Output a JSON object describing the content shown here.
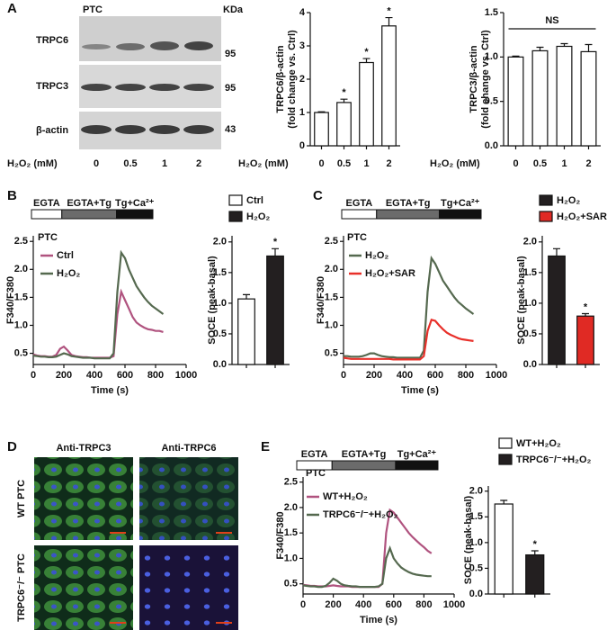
{
  "panel_letters": [
    "A",
    "B",
    "C",
    "D",
    "E"
  ],
  "blot": {
    "cell": "PTC",
    "unit": "KDa",
    "rows": [
      "TRPC6",
      "TRPC3",
      "β-actin"
    ],
    "markers": [
      "95",
      "95",
      "43"
    ],
    "treatment": "H₂O₂ (mM)",
    "lanes": [
      "0",
      "0.5",
      "1",
      "2"
    ]
  },
  "images": {
    "columns": [
      "Anti-TRPC3",
      "Anti-TRPC6"
    ],
    "rows": [
      "WT PTC",
      "TRPC6⁻/⁻ PTC"
    ]
  },
  "chart_data": [
    {
      "type": "bar",
      "categories": [
        "0",
        "0.5",
        "1",
        "2"
      ],
      "xlabel": "H₂O₂ (mM)",
      "ylabel": [
        "TRPC6/β-actin",
        "(fold change vs. Ctrl)"
      ],
      "values": [
        1,
        1.3,
        2.5,
        3.6
      ],
      "errors": [
        0.02,
        0.1,
        0.12,
        0.25
      ],
      "value_annotations": [
        null,
        "*",
        "*",
        "*"
      ],
      "colors": [
        "#ffffff",
        "#ffffff",
        "#ffffff",
        "#ffffff"
      ],
      "ylim": [
        0,
        4
      ],
      "yticks": [
        0,
        1,
        2,
        3,
        4
      ]
    },
    {
      "type": "bar",
      "categories": [
        "0",
        "0.5",
        "1",
        "2"
      ],
      "xlabel": "H₂O₂ (mM)",
      "ylabel": [
        "TRPC3/β-actin",
        "(fold change vs. Ctrl)"
      ],
      "values": [
        1,
        1.07,
        1.12,
        1.06
      ],
      "errors": [
        0.01,
        0.04,
        0.03,
        0.08
      ],
      "bracket_label": "NS",
      "colors": [
        "#ffffff",
        "#ffffff",
        "#ffffff",
        "#ffffff"
      ],
      "ylim": [
        0,
        1.5
      ],
      "yticks": [
        {
          "value": 0,
          "label": "0.0"
        },
        0.5,
        {
          "value": 1,
          "label": "1.0"
        },
        1.5
      ]
    },
    {
      "type": "line",
      "label": "PTC",
      "protocol": [
        "EGTA",
        "EGTA+Tg",
        "Tg+Ca²⁺"
      ],
      "xlabel": "Time (s)",
      "ylabel": "F340/F380",
      "x": [
        0,
        25,
        50,
        75,
        100,
        125,
        150,
        175,
        200,
        225,
        250,
        275,
        300,
        325,
        350,
        375,
        400,
        425,
        450,
        475,
        500,
        525,
        550,
        575,
        600,
        625,
        650,
        675,
        700,
        725,
        750,
        775,
        800,
        825,
        850
      ],
      "series": [
        {
          "name": "Ctrl",
          "color": "#b0537f",
          "values": [
            0.48,
            0.46,
            0.45,
            0.45,
            0.44,
            0.44,
            0.47,
            0.58,
            0.62,
            0.55,
            0.47,
            0.45,
            0.44,
            0.43,
            0.43,
            0.42,
            0.42,
            0.42,
            0.42,
            0.42,
            0.42,
            0.45,
            1.2,
            1.6,
            1.45,
            1.3,
            1.15,
            1.05,
            1.0,
            0.96,
            0.93,
            0.92,
            0.9,
            0.9,
            0.88
          ]
        },
        {
          "name": "H₂O₂",
          "color": "#55694f",
          "values": [
            0.46,
            0.45,
            0.44,
            0.44,
            0.43,
            0.43,
            0.44,
            0.47,
            0.5,
            0.48,
            0.45,
            0.44,
            0.43,
            0.42,
            0.42,
            0.42,
            0.41,
            0.41,
            0.41,
            0.41,
            0.41,
            0.5,
            1.6,
            2.3,
            2.2,
            2.0,
            1.85,
            1.7,
            1.6,
            1.5,
            1.42,
            1.35,
            1.3,
            1.25,
            1.2
          ]
        }
      ],
      "xlim": [
        0,
        1000
      ],
      "xticks": [
        0,
        200,
        400,
        600,
        800,
        1000
      ],
      "ylim": [
        0.3,
        2.6
      ],
      "yticks": [
        0.5,
        {
          "value": 1,
          "label": "1.0"
        },
        1.5,
        {
          "value": 2,
          "label": "2.0"
        },
        2.5
      ]
    },
    {
      "type": "bar",
      "legend": "above",
      "categories": [
        "Ctrl",
        "H₂O₂"
      ],
      "ylabel": "SOCE (peak-basal)",
      "values": [
        1.07,
        1.77
      ],
      "errors": [
        0.07,
        0.12
      ],
      "value_annotations": [
        null,
        "*"
      ],
      "colors": [
        "#ffffff",
        "#231f20"
      ],
      "ylim": [
        0,
        2.1
      ],
      "yticks": [
        {
          "value": 0,
          "label": "0.0"
        },
        0.5,
        {
          "value": 1,
          "label": "1.0"
        },
        1.5,
        {
          "value": 2,
          "label": "2.0"
        }
      ]
    },
    {
      "type": "line",
      "label": "PTC",
      "protocol": [
        "EGTA",
        "EGTA+Tg",
        "Tg+Ca²⁺"
      ],
      "xlabel": "Time (s)",
      "ylabel": "F340/F380",
      "x": [
        0,
        25,
        50,
        75,
        100,
        125,
        150,
        175,
        200,
        225,
        250,
        275,
        300,
        325,
        350,
        375,
        400,
        425,
        450,
        475,
        500,
        525,
        550,
        575,
        600,
        625,
        650,
        675,
        700,
        725,
        750,
        775,
        800,
        825,
        850
      ],
      "series": [
        {
          "name": "H₂O₂",
          "color": "#55694f",
          "values": [
            0.45,
            0.45,
            0.44,
            0.44,
            0.44,
            0.45,
            0.47,
            0.5,
            0.5,
            0.47,
            0.45,
            0.44,
            0.43,
            0.43,
            0.42,
            0.42,
            0.42,
            0.42,
            0.42,
            0.42,
            0.42,
            0.55,
            1.6,
            2.2,
            2.1,
            1.95,
            1.8,
            1.7,
            1.6,
            1.5,
            1.42,
            1.36,
            1.3,
            1.25,
            1.2
          ]
        },
        {
          "name": "H₂O₂+SAR",
          "color": "#e8302a",
          "values": [
            0.42,
            0.41,
            0.4,
            0.4,
            0.4,
            0.4,
            0.4,
            0.4,
            0.4,
            0.4,
            0.4,
            0.4,
            0.4,
            0.39,
            0.39,
            0.39,
            0.39,
            0.39,
            0.39,
            0.39,
            0.39,
            0.45,
            0.9,
            1.1,
            1.08,
            1.0,
            0.93,
            0.87,
            0.83,
            0.8,
            0.77,
            0.75,
            0.74,
            0.73,
            0.72
          ]
        }
      ],
      "xlim": [
        0,
        1000
      ],
      "xticks": [
        0,
        200,
        400,
        600,
        800,
        1000
      ],
      "ylim": [
        0.3,
        2.6
      ],
      "yticks": [
        0.5,
        {
          "value": 1,
          "label": "1.0"
        },
        1.5,
        {
          "value": 2,
          "label": "2.0"
        },
        2.5
      ]
    },
    {
      "type": "bar",
      "legend": "above",
      "categories": [
        "H₂O₂",
        "H₂O₂+SAR"
      ],
      "ylabel": "SOCE (peak-basal)",
      "values": [
        1.77,
        0.79
      ],
      "errors": [
        0.12,
        0.04
      ],
      "value_annotations": [
        null,
        "*"
      ],
      "colors": [
        "#231f20",
        "#e02a24"
      ],
      "ylim": [
        0,
        2.1
      ],
      "yticks": [
        {
          "value": 0,
          "label": "0.0"
        },
        0.5,
        {
          "value": 1,
          "label": "1.0"
        },
        1.5,
        {
          "value": 2,
          "label": "2.0"
        }
      ]
    },
    {
      "type": "line",
      "label": "PTC",
      "protocol": [
        "EGTA",
        "EGTA+Tg",
        "Tg+Ca²⁺"
      ],
      "xlabel": "Time (s)",
      "ylabel": "F340/F380",
      "x": [
        0,
        25,
        50,
        75,
        100,
        125,
        150,
        175,
        200,
        225,
        250,
        275,
        300,
        325,
        350,
        375,
        400,
        425,
        450,
        475,
        500,
        525,
        550,
        575,
        600,
        625,
        650,
        675,
        700,
        725,
        750,
        775,
        800,
        825,
        850
      ],
      "series": [
        {
          "name": "WT+H₂O₂",
          "color": "#b0537f",
          "values": [
            0.48,
            0.47,
            0.46,
            0.46,
            0.45,
            0.45,
            0.45,
            0.46,
            0.47,
            0.46,
            0.45,
            0.45,
            0.45,
            0.44,
            0.44,
            0.44,
            0.44,
            0.44,
            0.44,
            0.44,
            0.44,
            0.5,
            1.5,
            1.95,
            1.9,
            1.8,
            1.7,
            1.6,
            1.5,
            1.42,
            1.35,
            1.28,
            1.22,
            1.15,
            1.1
          ]
        },
        {
          "name": "TRPC6⁻/⁻+H₂O₂",
          "color": "#55694f",
          "values": [
            0.47,
            0.46,
            0.45,
            0.45,
            0.44,
            0.44,
            0.46,
            0.52,
            0.6,
            0.56,
            0.5,
            0.47,
            0.46,
            0.45,
            0.45,
            0.44,
            0.44,
            0.44,
            0.44,
            0.44,
            0.45,
            0.5,
            1.0,
            1.2,
            1.0,
            0.9,
            0.82,
            0.77,
            0.73,
            0.7,
            0.68,
            0.67,
            0.66,
            0.65,
            0.65
          ]
        }
      ],
      "xlim": [
        0,
        1000
      ],
      "xticks": [
        0,
        200,
        400,
        600,
        800,
        1000
      ],
      "ylim": [
        0.3,
        2.6
      ],
      "yticks": [
        0.5,
        {
          "value": 1,
          "label": "1.0"
        },
        1.5,
        {
          "value": 2,
          "label": "2.0"
        },
        2.5
      ]
    },
    {
      "type": "bar",
      "legend": "above",
      "categories": [
        "WT+H₂O₂",
        "TRPC6⁻/⁻+H₂O₂"
      ],
      "ylabel": "SOCE (peak-basal)",
      "values": [
        1.75,
        0.76
      ],
      "errors": [
        0.07,
        0.08
      ],
      "value_annotations": [
        null,
        "*"
      ],
      "colors": [
        "#ffffff",
        "#231f20"
      ],
      "ylim": [
        0,
        2.1
      ],
      "yticks": [
        {
          "value": 0,
          "label": "0.0"
        },
        0.5,
        {
          "value": 1,
          "label": "1.0"
        },
        1.5,
        {
          "value": 2,
          "label": "2.0"
        }
      ]
    }
  ]
}
